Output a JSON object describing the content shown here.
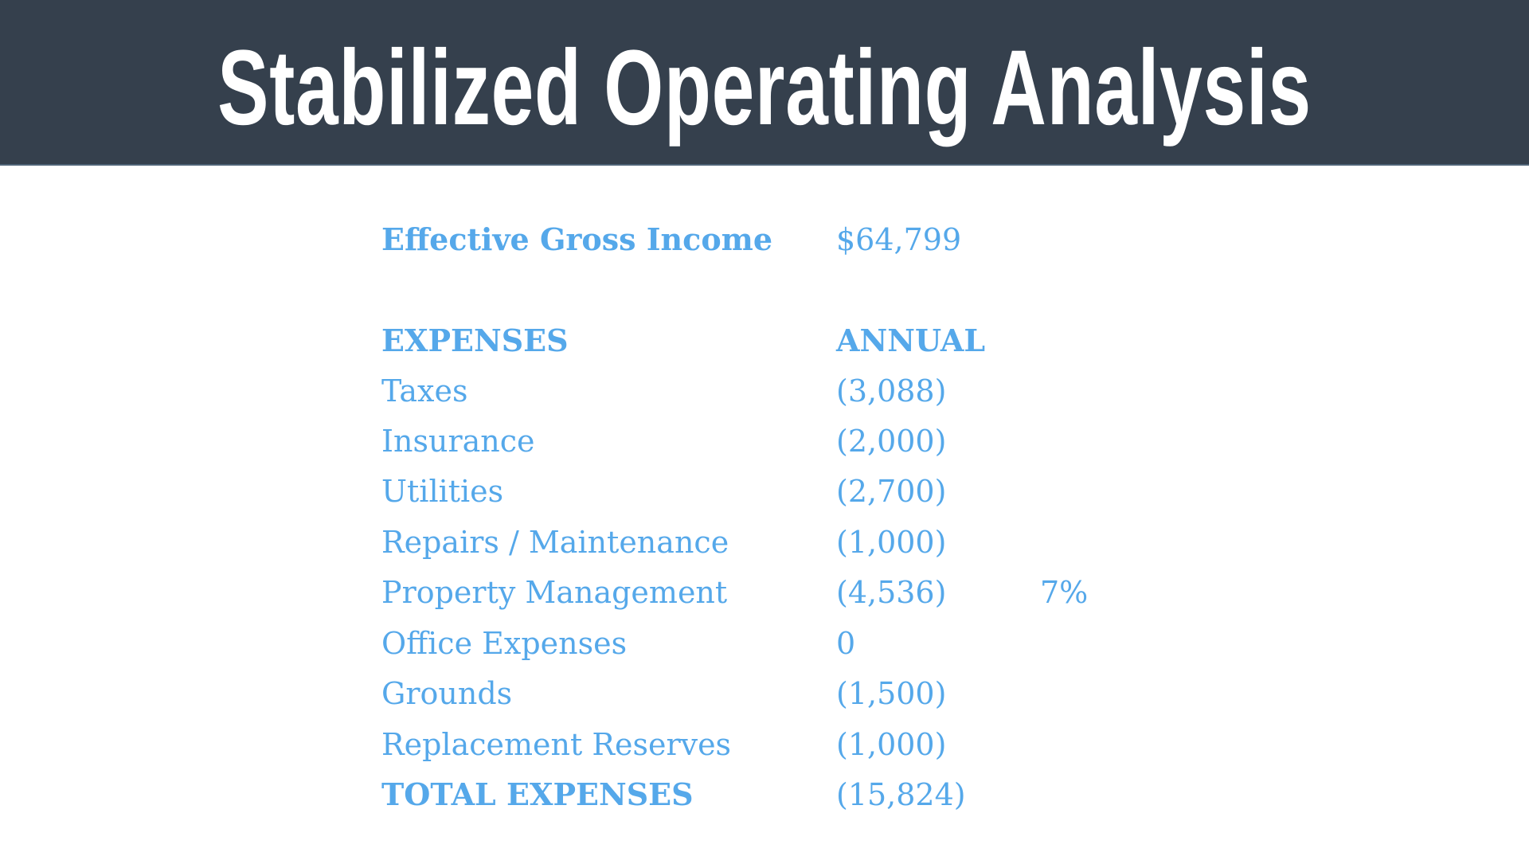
{
  "title": "Stabilized Operating Analysis",
  "colors": {
    "header_bg": "#35404d",
    "text": "#55a8ea",
    "title": "#ffffff"
  },
  "income": {
    "label": "Effective Gross Income",
    "value": "$64,799"
  },
  "expenses_header": {
    "label": "EXPENSES",
    "value": "ANNUAL"
  },
  "expenses": [
    {
      "label": "Taxes",
      "value": "(3,088)",
      "note": ""
    },
    {
      "label": "Insurance",
      "value": "(2,000)",
      "note": ""
    },
    {
      "label": "Utilities",
      "value": "(2,700)",
      "note": ""
    },
    {
      "label": "Repairs / Maintenance",
      "value": "(1,000)",
      "note": ""
    },
    {
      "label": "Property Management",
      "value": "(4,536)",
      "note": "7%"
    },
    {
      "label": "Office Expenses",
      "value": "0",
      "note": ""
    },
    {
      "label": "Grounds",
      "value": "(1,500)",
      "note": ""
    },
    {
      "label": "Replacement Reserves",
      "value": "(1,000)",
      "note": ""
    }
  ],
  "total": {
    "label": "TOTAL EXPENSES",
    "value": "(15,824)"
  }
}
